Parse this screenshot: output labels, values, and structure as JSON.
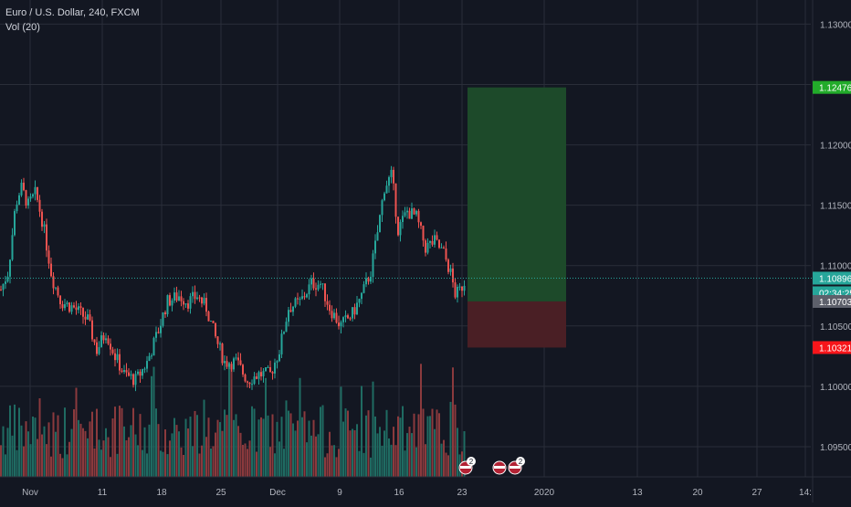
{
  "legend": {
    "symbol_line": "Euro / U.S. Dollar, 240, FXCM",
    "volume_line": "Vol (20)"
  },
  "theme": {
    "background": "#131722",
    "grid": "#2a2e39",
    "text": "#b2b5be",
    "bull": "#26a69a",
    "bear": "#ef5350",
    "volume_bull": "#1f6b62",
    "volume_bear": "#8b3a3d",
    "target_zone": "#1d4a2a",
    "stop_zone": "#4a1f25",
    "target_label_bg": "#22ab2a",
    "stop_label_bg": "#f7151a",
    "entry_label_bg": "#5d606b",
    "last_price_bg": "#26a69a"
  },
  "price_axis": {
    "ticks": [
      "1.13000",
      "1.12500",
      "1.12000",
      "1.11500",
      "1.11000",
      "1.10500",
      "1.10000",
      "1.09500"
    ],
    "labels": [
      {
        "name": "target-price-label",
        "text": "1.12476",
        "value": 1.12476,
        "style": "target"
      },
      {
        "name": "last-price-label",
        "text": "1.10896",
        "value": 1.10896,
        "style": "last"
      },
      {
        "name": "countdown-label",
        "text": "02:34:25",
        "style": "last-sub"
      },
      {
        "name": "entry-price-label",
        "text": "1.10703",
        "value": 1.10703,
        "style": "entry"
      },
      {
        "name": "stop-price-label",
        "text": "1.10321",
        "value": 1.10321,
        "style": "stop"
      }
    ]
  },
  "time_axis": {
    "ticks": [
      "Nov",
      "11",
      "18",
      "25",
      "Dec",
      "9",
      "16",
      "23",
      "2020",
      "13",
      "20",
      "27",
      "14:"
    ]
  },
  "position_tool": {
    "entry": 1.10703,
    "target": 1.12476,
    "stop": 1.10321
  },
  "event_markers": [
    {
      "name": "us-flag-event-marker",
      "count": "2"
    },
    {
      "name": "us-flag-event-marker",
      "count": ""
    },
    {
      "name": "us-flag-event-marker",
      "count": "2"
    }
  ],
  "chart_data": {
    "type": "candlestick",
    "title": "Euro / U.S. Dollar, 240, FXCM",
    "series": [
      {
        "name": "EURUSD",
        "anchors": [
          [
            0,
            1.108
          ],
          [
            8,
            1.1095
          ],
          [
            16,
            1.115
          ],
          [
            22,
            1.1165
          ],
          [
            30,
            1.115
          ],
          [
            38,
            1.116
          ],
          [
            46,
            1.1135
          ],
          [
            56,
            1.109
          ],
          [
            66,
            1.107
          ],
          [
            80,
            1.1065
          ],
          [
            95,
            1.1055
          ],
          [
            105,
            1.103
          ],
          [
            115,
            1.1045
          ],
          [
            125,
            1.1025
          ],
          [
            135,
            1.101
          ],
          [
            148,
            1.1005
          ],
          [
            160,
            1.102
          ],
          [
            172,
            1.1045
          ],
          [
            182,
            1.107
          ],
          [
            195,
            1.1075
          ],
          [
            205,
            1.107
          ],
          [
            215,
            1.1075
          ],
          [
            225,
            1.1065
          ],
          [
            235,
            1.104
          ],
          [
            245,
            1.102
          ],
          [
            258,
            1.102
          ],
          [
            270,
            1.1005
          ],
          [
            282,
            1.101
          ],
          [
            295,
            1.101
          ],
          [
            305,
            1.103
          ],
          [
            315,
            1.1065
          ],
          [
            328,
            1.107
          ],
          [
            340,
            1.1085
          ],
          [
            350,
            1.1085
          ],
          [
            360,
            1.1065
          ],
          [
            372,
            1.105
          ],
          [
            385,
            1.106
          ],
          [
            395,
            1.1075
          ],
          [
            405,
            1.1095
          ],
          [
            412,
            1.1125
          ],
          [
            420,
            1.1165
          ],
          [
            428,
            1.1175
          ],
          [
            435,
            1.113
          ],
          [
            445,
            1.1145
          ],
          [
            455,
            1.114
          ],
          [
            465,
            1.1115
          ],
          [
            475,
            1.112
          ],
          [
            485,
            1.111
          ],
          [
            492,
            1.1095
          ],
          [
            498,
            1.1075
          ],
          [
            503,
            1.108
          ],
          [
            509,
            1.1089
          ]
        ]
      }
    ],
    "ylim": [
      1.0925,
      1.132
    ],
    "volume_label": "Vol (20)"
  }
}
